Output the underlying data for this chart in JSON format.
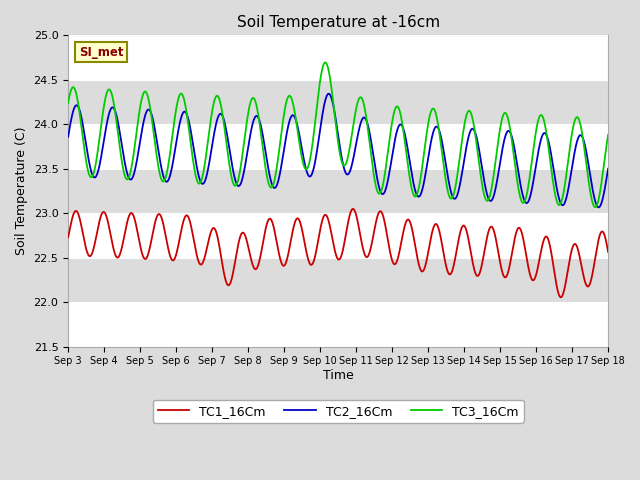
{
  "title": "Soil Temperature at -16cm",
  "xlabel": "Time",
  "ylabel": "Soil Temperature (C)",
  "ylim": [
    21.5,
    25.0
  ],
  "yticks": [
    21.5,
    22.0,
    22.5,
    23.0,
    23.5,
    24.0,
    24.5,
    25.0
  ],
  "xtick_labels": [
    "Sep 3",
    "Sep 4",
    "Sep 5",
    "Sep 6",
    "Sep 7",
    "Sep 8",
    "Sep 9",
    "Sep 10",
    "Sep 11",
    "Sep 12",
    "Sep 13",
    "Sep 14",
    "Sep 15",
    "Sep 16",
    "Sep 17",
    "Sep 18"
  ],
  "annotation_text": "SI_met",
  "bg_color": "#dcdcdc",
  "line_colors": [
    "#cc0000",
    "#0000cc",
    "#00cc00"
  ],
  "line_labels": [
    "TC1_16Cm",
    "TC2_16Cm",
    "TC3_16Cm"
  ],
  "n_days": 15
}
